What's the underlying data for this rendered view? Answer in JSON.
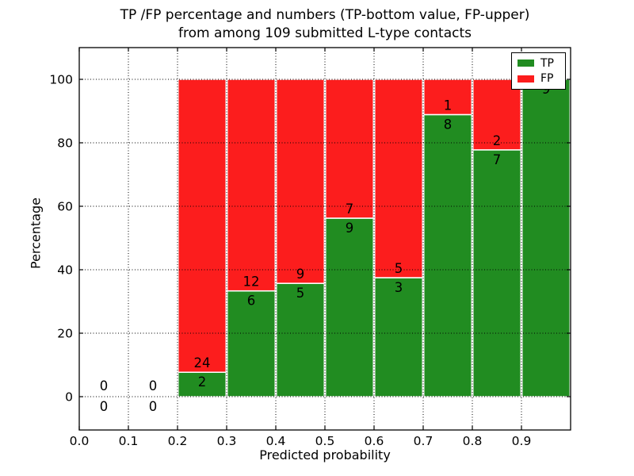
{
  "title": {
    "line1": "TP /FP percentage and numbers (TP-bottom value, FP-upper)",
    "line2": "from among 109 submitted L-type contacts"
  },
  "axes": {
    "x_label": "Predicted probability",
    "y_label": "Percentage",
    "x_tick_labels": [
      "0.0",
      "0.1",
      "0.2",
      "0.3",
      "0.4",
      "0.5",
      "0.6",
      "0.7",
      "0.8",
      "0.9"
    ],
    "y_tick_labels": [
      "0",
      "20",
      "40",
      "60",
      "80",
      "100"
    ],
    "y_tick_values": [
      0,
      20,
      40,
      60,
      80,
      100
    ]
  },
  "legend": {
    "items": [
      {
        "label": "TP"
      },
      {
        "label": "FP"
      }
    ]
  },
  "colors": {
    "tp": "#218c21",
    "fp": "#fc1d1d",
    "bar_edge": "#ffffff",
    "grid": "#000000",
    "text": "#000000"
  },
  "chart_data": {
    "type": "bar",
    "stacked": true,
    "title": "TP /FP percentage and numbers (TP-bottom value, FP-upper) from among 109 submitted L-type contacts",
    "xlabel": "Predicted probability",
    "ylabel": "Percentage",
    "bin_edges": [
      0.0,
      0.1,
      0.2,
      0.3,
      0.4,
      0.5,
      0.6,
      0.7,
      0.8,
      0.9,
      1.0
    ],
    "series": [
      {
        "name": "TP",
        "color": "#218c21",
        "counts": [
          0,
          0,
          2,
          6,
          5,
          9,
          3,
          8,
          7,
          9
        ]
      },
      {
        "name": "FP",
        "color": "#fc1d1d",
        "counts": [
          0,
          0,
          24,
          12,
          9,
          7,
          5,
          1,
          2,
          0
        ]
      }
    ],
    "tp_percent_per_bin": [
      null,
      null,
      7.7,
      33.3,
      35.7,
      56.3,
      37.5,
      88.9,
      77.8,
      100.0
    ],
    "total_contacts": 109,
    "xlim": [
      0.0,
      1.0
    ],
    "ylim": [
      -10.5,
      110
    ],
    "grid": "dotted",
    "legend_position": "upper right"
  }
}
